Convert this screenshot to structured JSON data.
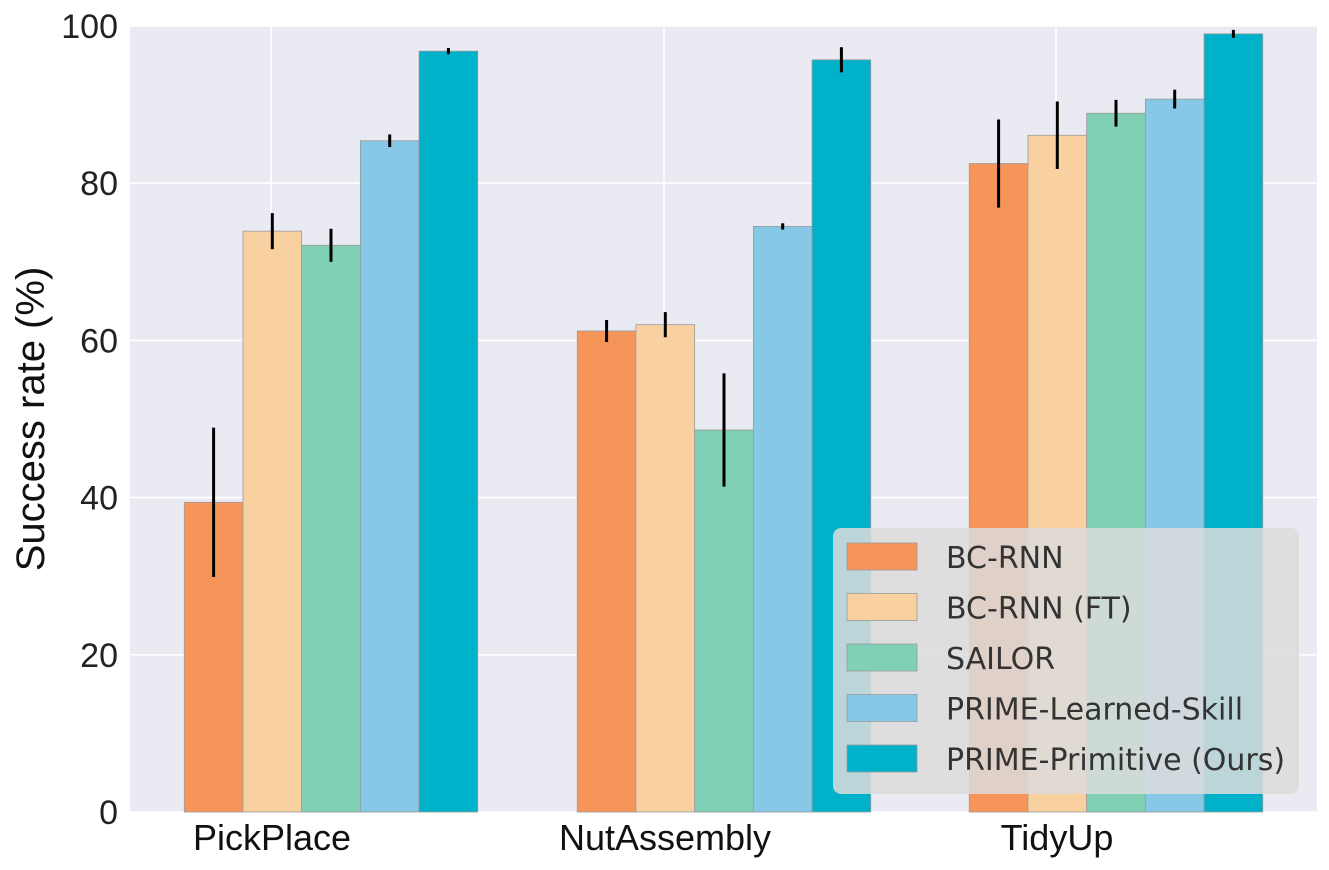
{
  "chart_data": {
    "type": "bar",
    "title": "",
    "xlabel": "",
    "ylabel": "Success rate (%)",
    "ylim": [
      0,
      100
    ],
    "yticks": [
      "0",
      "20",
      "40",
      "60",
      "80",
      "100"
    ],
    "categories": [
      "PickPlace",
      "NutAssembly",
      "TidyUp"
    ],
    "legend_position": "bottom-right",
    "series": [
      {
        "name": "BC-RNN",
        "color": "#F5955A",
        "values": [
          39.4,
          61.2,
          82.5
        ],
        "errors": [
          9.5,
          1.4,
          5.6
        ]
      },
      {
        "name": "BC-RNN (FT)",
        "color": "#F9D1A0",
        "values": [
          73.9,
          62.0,
          86.1
        ],
        "errors": [
          2.3,
          1.6,
          4.3
        ]
      },
      {
        "name": "SAILOR",
        "color": "#7FD0B5",
        "values": [
          72.1,
          48.6,
          88.9
        ],
        "errors": [
          2.1,
          7.2,
          1.7
        ]
      },
      {
        "name": "PRIME-Learned-Skill",
        "color": "#87C8E6",
        "values": [
          85.4,
          74.5,
          90.7
        ],
        "errors": [
          0.8,
          0.4,
          1.2
        ]
      },
      {
        "name": "PRIME-Primitive (Ours)",
        "color": "#00B1CA",
        "values": [
          96.8,
          95.7,
          99.0
        ],
        "errors": [
          0.4,
          1.6,
          0.5
        ]
      }
    ]
  }
}
